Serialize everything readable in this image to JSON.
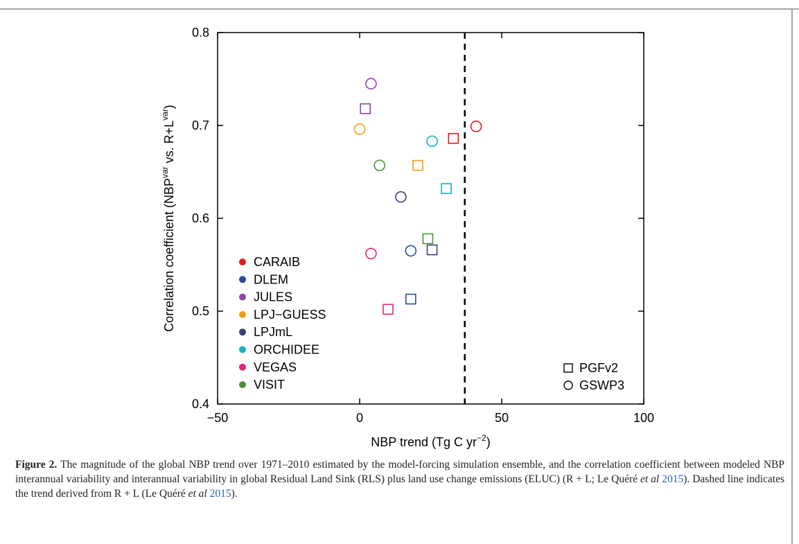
{
  "figure": {
    "label": "Figure 2.",
    "caption_parts": {
      "p1": "The magnitude of the global NBP trend over 1971–2010 estimated by the model-forcing simulation ensemble, and the correlation coefficient between modeled NBP interannual variability and interannual variability in global Residual Land Sink (RLS) plus land use change emissions (ELUC) (R + L; Le Quéré ",
      "etal1": "et al",
      "ref1": "2015",
      "p2": "). Dashed line indicates the trend derived from R + L (Le Quéré ",
      "etal2": "et al",
      "ref2": "2015",
      "p3": ")."
    }
  },
  "chart_data": {
    "type": "scatter",
    "xlabel_main": "NBP trend (Tg C yr",
    "xlabel_sup": "−2",
    "xlabel_end": ")",
    "ylabel_parts": [
      "Correlation coefficient (NBP",
      "var",
      " vs. R+L",
      "var",
      ")"
    ],
    "xlim": [
      -50,
      100
    ],
    "ylim": [
      0.4,
      0.8
    ],
    "xticks": [
      -50,
      0,
      50,
      100
    ],
    "xtick_labels": [
      "−50",
      "0",
      "50",
      "100"
    ],
    "yticks": [
      0.4,
      0.5,
      0.6,
      0.7,
      0.8
    ],
    "ytick_labels": [
      "0.4",
      "0.5",
      "0.6",
      "0.7",
      "0.8"
    ],
    "reference_line_x": 37,
    "legend_placement": "bottom-left",
    "marker_legend_placement": "bottom-right",
    "models": [
      {
        "name": "CARAIB",
        "color": "#e31a1c"
      },
      {
        "name": "DLEM",
        "color": "#2b4a9c"
      },
      {
        "name": "JULES",
        "color": "#8e44ad"
      },
      {
        "name": "LPJ−GUESS",
        "color": "#f39c12"
      },
      {
        "name": "LPJmL",
        "color": "#3d3d7a"
      },
      {
        "name": "ORCHIDEE",
        "color": "#1aafc4"
      },
      {
        "name": "VEGAS",
        "color": "#e8237a"
      },
      {
        "name": "VISIT",
        "color": "#4e8f3a"
      }
    ],
    "forcings": [
      {
        "name": "PGFv2",
        "marker": "square"
      },
      {
        "name": "GSWP3",
        "marker": "circle"
      }
    ],
    "points": [
      {
        "model": "CARAIB",
        "forcing": "PGFv2",
        "x": 33,
        "y": 0.686
      },
      {
        "model": "CARAIB",
        "forcing": "GSWP3",
        "x": 41,
        "y": 0.699
      },
      {
        "model": "DLEM",
        "forcing": "PGFv2",
        "x": 18,
        "y": 0.513
      },
      {
        "model": "DLEM",
        "forcing": "GSWP3",
        "x": 18,
        "y": 0.565
      },
      {
        "model": "JULES",
        "forcing": "PGFv2",
        "x": 2,
        "y": 0.718
      },
      {
        "model": "JULES",
        "forcing": "GSWP3",
        "x": 4,
        "y": 0.745
      },
      {
        "model": "LPJ−GUESS",
        "forcing": "PGFv2",
        "x": 20.5,
        "y": 0.657
      },
      {
        "model": "LPJ−GUESS",
        "forcing": "GSWP3",
        "x": 0,
        "y": 0.696
      },
      {
        "model": "LPJmL",
        "forcing": "PGFv2",
        "x": 25.5,
        "y": 0.566
      },
      {
        "model": "LPJmL",
        "forcing": "GSWP3",
        "x": 14.5,
        "y": 0.623
      },
      {
        "model": "ORCHIDEE",
        "forcing": "PGFv2",
        "x": 30.5,
        "y": 0.632
      },
      {
        "model": "ORCHIDEE",
        "forcing": "GSWP3",
        "x": 25.5,
        "y": 0.683
      },
      {
        "model": "VEGAS",
        "forcing": "PGFv2",
        "x": 10,
        "y": 0.502
      },
      {
        "model": "VEGAS",
        "forcing": "GSWP3",
        "x": 4,
        "y": 0.562
      },
      {
        "model": "VISIT",
        "forcing": "PGFv2",
        "x": 24,
        "y": 0.578
      },
      {
        "model": "VISIT",
        "forcing": "GSWP3",
        "x": 7,
        "y": 0.657
      }
    ]
  }
}
